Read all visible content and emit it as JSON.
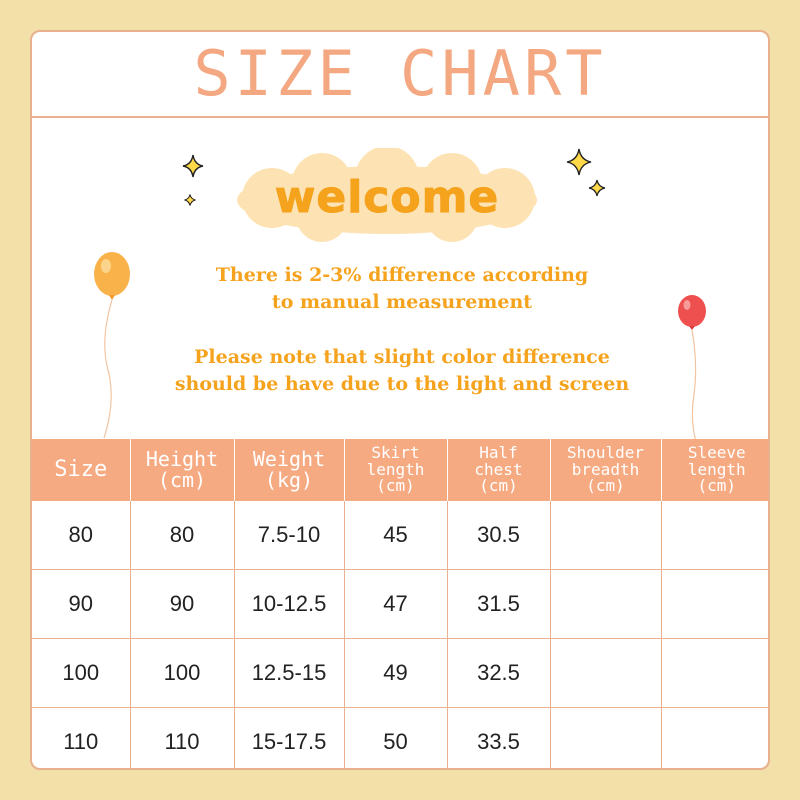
{
  "title": "SIZE CHART",
  "welcome": "welcome",
  "notes": {
    "line1": "There is 2-3% difference according",
    "line2": "to manual measurement",
    "line3": "Please note that slight color difference",
    "line4": "should be have due to the light and screen"
  },
  "colors": {
    "background": "#f3dfa8",
    "accent": "#f4a882",
    "header_fill": "#f6aa82",
    "note_text": "#f5a21c"
  },
  "table": {
    "headers": [
      {
        "line1": "Size",
        "line2": ""
      },
      {
        "line1": "Height",
        "line2": "(cm)"
      },
      {
        "line1": "Weight",
        "line2": "(kg)"
      },
      {
        "line1": "Skirt",
        "line2": "length",
        "line3": "(cm)"
      },
      {
        "line1": "Half",
        "line2": "chest",
        "line3": "(cm)"
      },
      {
        "line1": "Shoulder",
        "line2": "breadth",
        "line3": "(cm)"
      },
      {
        "line1": "Sleeve",
        "line2": "length",
        "line3": "(cm)"
      }
    ],
    "rows": [
      [
        "80",
        "80",
        "7.5-10",
        "45",
        "30.5",
        "",
        ""
      ],
      [
        "90",
        "90",
        "10-12.5",
        "47",
        "31.5",
        "",
        ""
      ],
      [
        "100",
        "100",
        "12.5-15",
        "49",
        "32.5",
        "",
        ""
      ],
      [
        "110",
        "110",
        "15-17.5",
        "50",
        "33.5",
        "",
        ""
      ]
    ]
  }
}
